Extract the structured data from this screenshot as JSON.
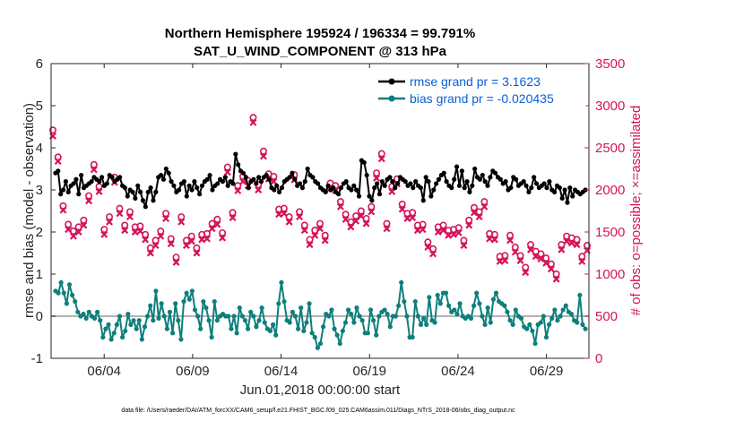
{
  "chart_data": {
    "type": "line",
    "title_line1": "Northern Hemisphere 195924 / 196334 = 99.791%",
    "title_line2": "SAT_U_WIND_COMPONENT @ 313 hPa",
    "xlabel": "Jun.01,2018 00:00:00 start",
    "ylabel_left": "rmse and bias (model - observation)",
    "ylabel_right": "# of obs: o=possible; ×=assimilated",
    "footnote": "data file: /Users/raeder/DAI/ATM_forcXX/CAM6_setup/f.e21.FHIST_BGC.f09_025.CAM6assim.011/Diags_NTrS_2018-06/obs_diag_output.nc",
    "xlim": [
      0.5,
      30.9
    ],
    "ylim_left": [
      -1,
      6
    ],
    "ylim_right": [
      0,
      3500
    ],
    "x_ticks": [
      3.5,
      8.5,
      13.5,
      18.5,
      23.5,
      28.5
    ],
    "x_tick_labels": [
      "06/04",
      "06/09",
      "06/14",
      "06/19",
      "06/24",
      "06/29"
    ],
    "y_ticks_left": [
      -1,
      0,
      1,
      2,
      3,
      4,
      5,
      6
    ],
    "y_tick_labels_left": [
      "-1",
      "0",
      "1",
      "2",
      "3",
      "4",
      "5",
      "6"
    ],
    "y_ticks_right": [
      0,
      500,
      1000,
      1500,
      2000,
      2500,
      3000,
      3500
    ],
    "y_tick_labels_right": [
      "0",
      "500",
      "1000",
      "1500",
      "2000",
      "2500",
      "3000",
      "3500"
    ],
    "time_step": 0.25,
    "time_start": 0.75,
    "series": [
      {
        "name": "rmse grand pr = 3.1623",
        "color": "#000000",
        "axis": "left",
        "values": [
          3.4,
          3.45,
          2.9,
          3.0,
          3.2,
          2.95,
          3.1,
          3.15,
          3.25,
          2.9,
          3.35,
          3.05,
          3.1,
          3.15,
          3.2,
          3.3,
          3.25,
          3.2,
          3.3,
          3.1,
          3.15,
          3.35,
          3.3,
          3.2,
          3.25,
          3.3,
          3.1,
          3.05,
          2.85,
          3.0,
          2.95,
          2.8,
          3.1,
          2.95,
          2.75,
          2.6,
          2.95,
          3.05,
          2.75,
          2.95,
          3.3,
          3.35,
          3.25,
          3.5,
          3.4,
          3.2,
          3.1,
          2.95,
          3.0,
          3.15,
          3.2,
          2.85,
          3.1,
          3.0,
          3.2,
          3.05,
          2.9,
          3.1,
          3.2,
          3.25,
          3.35,
          3.0,
          3.1,
          3.15,
          3.25,
          3.2,
          3.3,
          3.1,
          3.2,
          3.15,
          3.85,
          3.6,
          3.45,
          3.4,
          3.3,
          3.05,
          3.2,
          3.25,
          3.15,
          3.3,
          3.2,
          3.3,
          3.35,
          3.25,
          3.05,
          3.0,
          3.1,
          2.95,
          3.05,
          3.2,
          3.25,
          3.3,
          3.4,
          3.25,
          3.1,
          3.15,
          3.05,
          3.2,
          3.5,
          3.35,
          3.3,
          3.2,
          3.15,
          3.05,
          3.0,
          2.95,
          3.1,
          3.0,
          3.05,
          2.95,
          2.9,
          3.05,
          3.15,
          3.2,
          3.05,
          3.0,
          3.1,
          3.0,
          2.85,
          3.7,
          3.65,
          3.35,
          2.85,
          2.75,
          3.05,
          3.15,
          2.9,
          3.2,
          3.1,
          3.25,
          3.3,
          3.2,
          3.05,
          3.15,
          3.3,
          3.25,
          3.2,
          3.1,
          3.15,
          3.05,
          3.2,
          3.1,
          3.05,
          2.75,
          3.3,
          3.2,
          2.85,
          3.0,
          3.15,
          3.25,
          3.35,
          3.4,
          3.2,
          3.1,
          3.05,
          3.25,
          3.55,
          3.1,
          3.45,
          3.05,
          3.2,
          2.95,
          3.1,
          3.5,
          3.3,
          3.25,
          3.35,
          3.2,
          3.1,
          3.3,
          3.45,
          3.4,
          3.3,
          3.25,
          3.15,
          3.2,
          3.0,
          3.05,
          3.3,
          3.25,
          3.1,
          3.15,
          3.2,
          3.1,
          2.95,
          3.05,
          3.3,
          3.15,
          3.05,
          3.1,
          3.15,
          3.05,
          3.2,
          3.0,
          2.95,
          3.1,
          3.05,
          2.8,
          3.0,
          2.7,
          3.05,
          2.85,
          3.0,
          2.95,
          2.9,
          2.95,
          3.0
        ]
      },
      {
        "name": "bias grand pr = -0.020435",
        "color": "#0e7f7b",
        "axis": "left",
        "values": [
          0.6,
          0.55,
          0.8,
          0.55,
          0.3,
          0.75,
          0.5,
          0.35,
          0.1,
          0.0,
          0.05,
          -0.05,
          0.1,
          0.0,
          -0.05,
          0.1,
          -0.1,
          -0.5,
          -0.3,
          -0.2,
          -0.55,
          -0.4,
          -0.2,
          0.0,
          -0.5,
          -0.35,
          0.05,
          -0.2,
          -0.1,
          -0.3,
          -0.1,
          -0.55,
          -0.25,
          0.0,
          0.25,
          -0.1,
          0.6,
          -0.05,
          0.3,
          0.0,
          -0.3,
          0.1,
          -0.4,
          0.3,
          -0.1,
          -0.55,
          0.35,
          0.55,
          0.4,
          0.6,
          0.15,
          0.0,
          -0.3,
          0.35,
          0.2,
          -0.1,
          -0.5,
          0.35,
          -0.1,
          0.0,
          0.05,
          0.0,
          0.0,
          -0.3,
          0.0,
          -0.4,
          0.2,
          0.0,
          -0.1,
          -0.3,
          0.1,
          0.0,
          -0.25,
          -0.1,
          0.2,
          -0.15,
          -0.3,
          -0.35,
          -0.2,
          -0.45,
          0.3,
          0.8,
          0.35,
          -0.1,
          -0.15,
          0.1,
          0.0,
          -0.3,
          0.2,
          -0.35,
          -0.15,
          0.3,
          -0.4,
          -0.5,
          -0.75,
          -0.65,
          -0.25,
          0.05,
          0.0,
          0.15,
          -0.3,
          -0.45,
          -0.65,
          -0.35,
          -0.15,
          0.15,
          0.05,
          -0.15,
          0.2,
          0.0,
          -0.1,
          -0.4,
          -0.4,
          0.15,
          -0.1,
          -0.45,
          0.0,
          0.1,
          0.15,
          0.05,
          -0.25,
          0.0,
          0.0,
          0.25,
          0.8,
          0.35,
          0.0,
          -0.5,
          -0.5,
          0.35,
          0.0,
          -0.2,
          -0.05,
          -0.2,
          0.45,
          -0.1,
          -0.15,
          0.5,
          0.3,
          0.55,
          0.55,
          0.25,
          0.1,
          0.15,
          0.05,
          0.3,
          0.0,
          -0.05,
          0.0,
          -0.05,
          0.25,
          0.55,
          0.3,
          0.0,
          -0.2,
          0.2,
          -0.15,
          0.4,
          0.55,
          0.35,
          0.3,
          0.25,
          0.1,
          -0.1,
          -0.2,
          0.15,
          0.0,
          -0.05,
          -0.25,
          -0.3,
          -0.2,
          -0.35,
          -0.65,
          -0.2,
          -0.15,
          0.0,
          -0.5,
          -0.2,
          -0.05,
          0.15,
          -0.1,
          0.0,
          0.15,
          0.25,
          0.1,
          0.05,
          -0.1,
          -0.15,
          0.5,
          -0.2,
          -0.3
        ]
      }
    ],
    "obs_possible": {
      "name": "possible",
      "color": "#d4145a",
      "axis": "right",
      "values": [
        2710,
        2390,
        1810,
        1590,
        1510,
        1560,
        1640,
        1930,
        2300,
        2040,
        1530,
        1680,
        2150,
        1780,
        1580,
        1740,
        1560,
        1570,
        1470,
        1310,
        1400,
        1510,
        1720,
        1420,
        1200,
        1680,
        1400,
        1450,
        1310,
        1470,
        1480,
        1600,
        1650,
        1490,
        2270,
        1730,
        2050,
        2160,
        2110,
        2860,
        2060,
        2460,
        2190,
        2160,
        1770,
        1780,
        1680,
        2180,
        1740,
        1580,
        1410,
        1520,
        1600,
        1460,
        2080,
        2050,
        1860,
        1710,
        1620,
        1690,
        1750,
        1660,
        1800,
        2200,
        2430,
        1600,
        2040,
        2130,
        1830,
        1720,
        1730,
        1580,
        1590,
        1380,
        1300,
        1560,
        1580,
        1520,
        1530,
        1550,
        1400,
        1640,
        1790,
        1740,
        1860,
        1480,
        1470,
        1210,
        1220,
        1460,
        1320,
        1220,
        1080,
        1350,
        1270,
        1240,
        1190,
        1120,
        1000,
        1350,
        1450,
        1430,
        1410,
        1210,
        1340
      ]
    },
    "obs_assimilated": {
      "name": "assimilated",
      "color": "#d4145a",
      "axis": "right",
      "values": [
        2640,
        2340,
        1760,
        1530,
        1450,
        1500,
        1580,
        1870,
        2240,
        1980,
        1470,
        1620,
        2090,
        1720,
        1520,
        1680,
        1500,
        1510,
        1410,
        1250,
        1340,
        1450,
        1660,
        1360,
        1140,
        1620,
        1340,
        1390,
        1250,
        1410,
        1420,
        1540,
        1590,
        1430,
        2210,
        1670,
        1990,
        2100,
        2050,
        2800,
        2000,
        2400,
        2130,
        2100,
        1710,
        1720,
        1620,
        2120,
        1680,
        1520,
        1350,
        1460,
        1540,
        1400,
        2020,
        1990,
        1800,
        1650,
        1560,
        1630,
        1690,
        1600,
        1740,
        2140,
        2370,
        1540,
        1980,
        2070,
        1770,
        1660,
        1670,
        1520,
        1530,
        1320,
        1240,
        1500,
        1520,
        1460,
        1470,
        1490,
        1340,
        1580,
        1730,
        1680,
        1800,
        1420,
        1410,
        1150,
        1160,
        1400,
        1260,
        1160,
        1020,
        1290,
        1210,
        1180,
        1130,
        1060,
        940,
        1290,
        1390,
        1370,
        1350,
        1150,
        1280
      ]
    }
  },
  "legend": {
    "rmse_label": "rmse grand pr = 3.1623",
    "bias_label": "bias grand pr = -0.020435"
  }
}
